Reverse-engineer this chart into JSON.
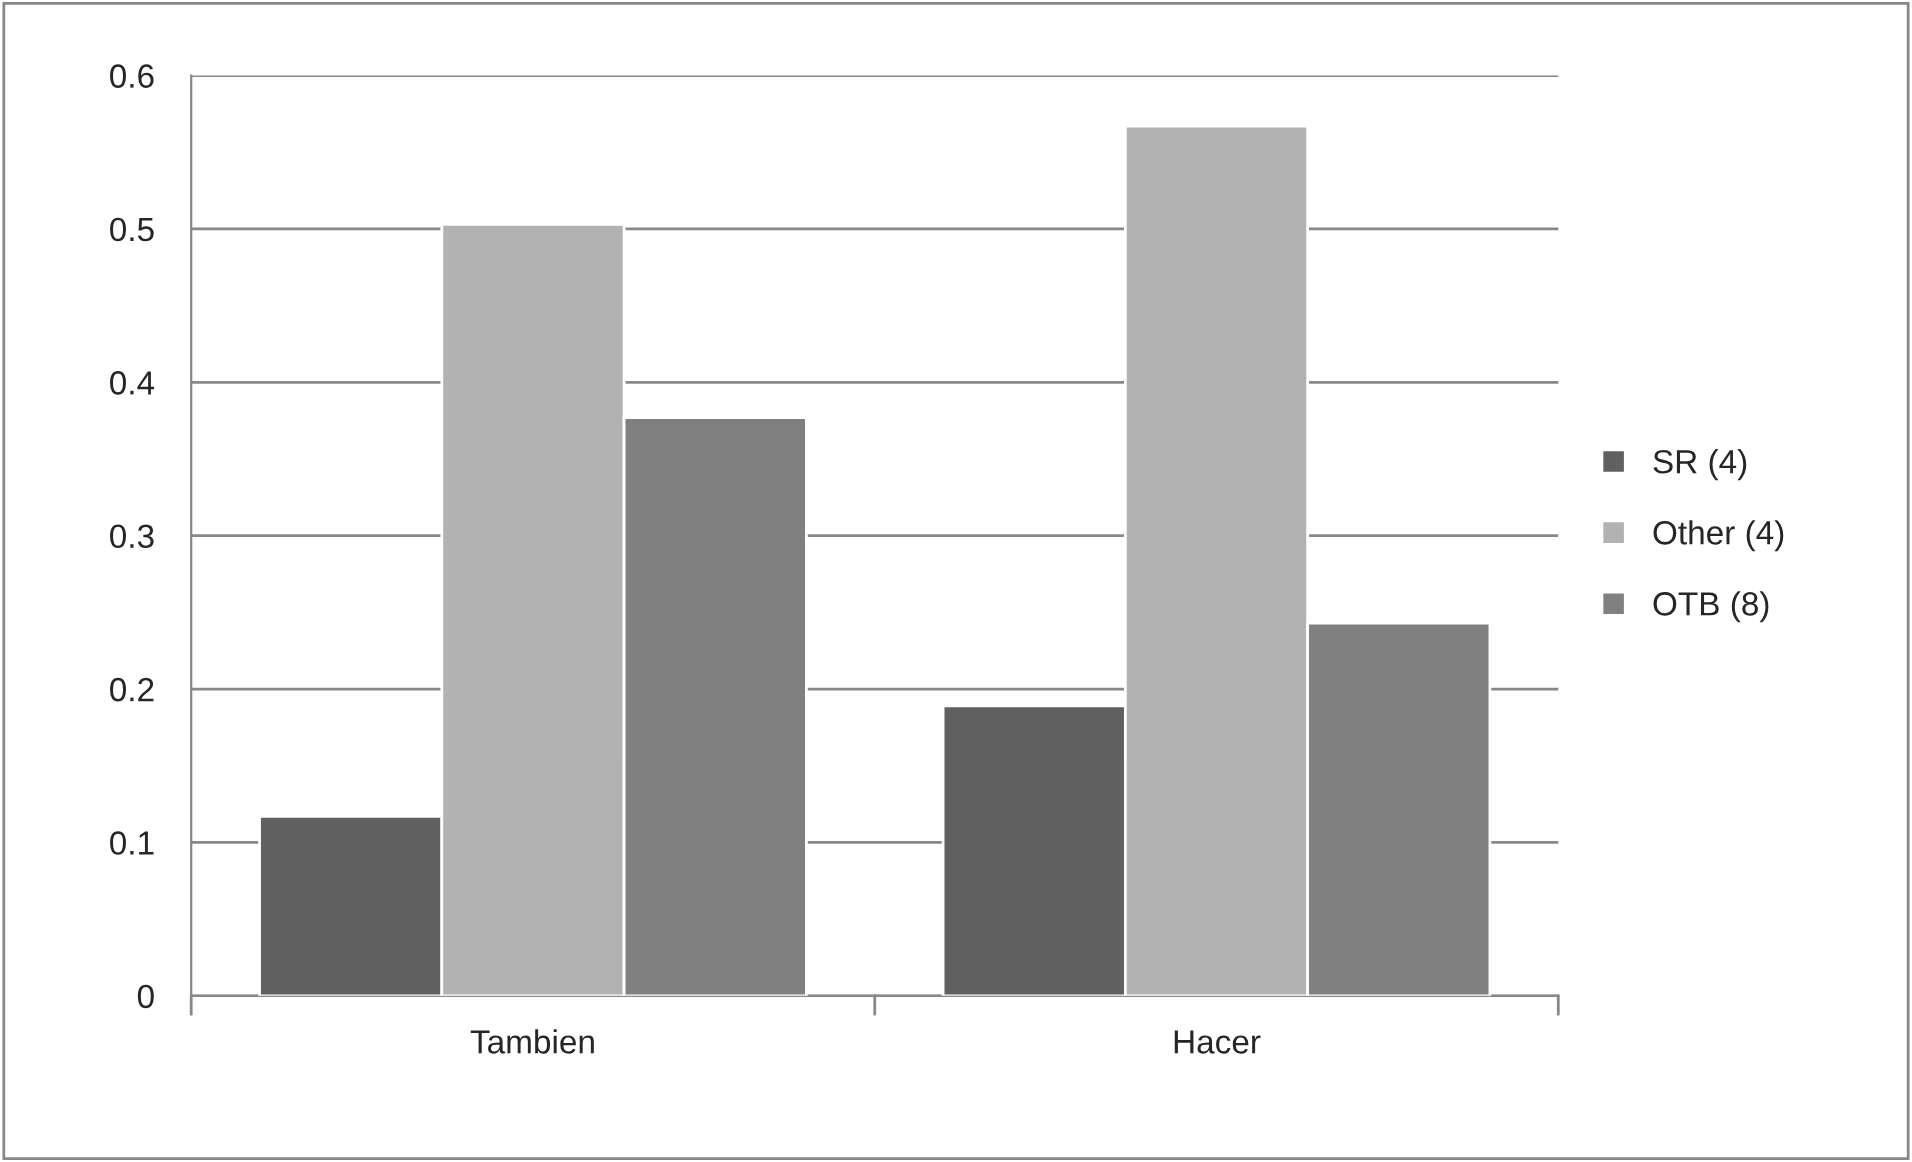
{
  "chart_data": {
    "type": "bar",
    "categories": [
      "Tambien",
      "Hacer"
    ],
    "series": [
      {
        "name": "SR (4)",
        "color": "#606060",
        "values": [
          0.117,
          0.189
        ]
      },
      {
        "name": "Other (4)",
        "color": "#b2b2b2",
        "values": [
          0.503,
          0.567
        ]
      },
      {
        "name": "OTB (8)",
        "color": "#808080",
        "values": [
          0.377,
          0.243
        ]
      }
    ],
    "ylim": [
      0,
      0.6
    ],
    "yticks": [
      {
        "value": 0,
        "label": "0"
      },
      0.1,
      0.2,
      0.3,
      0.4,
      0.5,
      0.6
    ],
    "grid": "y",
    "legend": "right"
  }
}
